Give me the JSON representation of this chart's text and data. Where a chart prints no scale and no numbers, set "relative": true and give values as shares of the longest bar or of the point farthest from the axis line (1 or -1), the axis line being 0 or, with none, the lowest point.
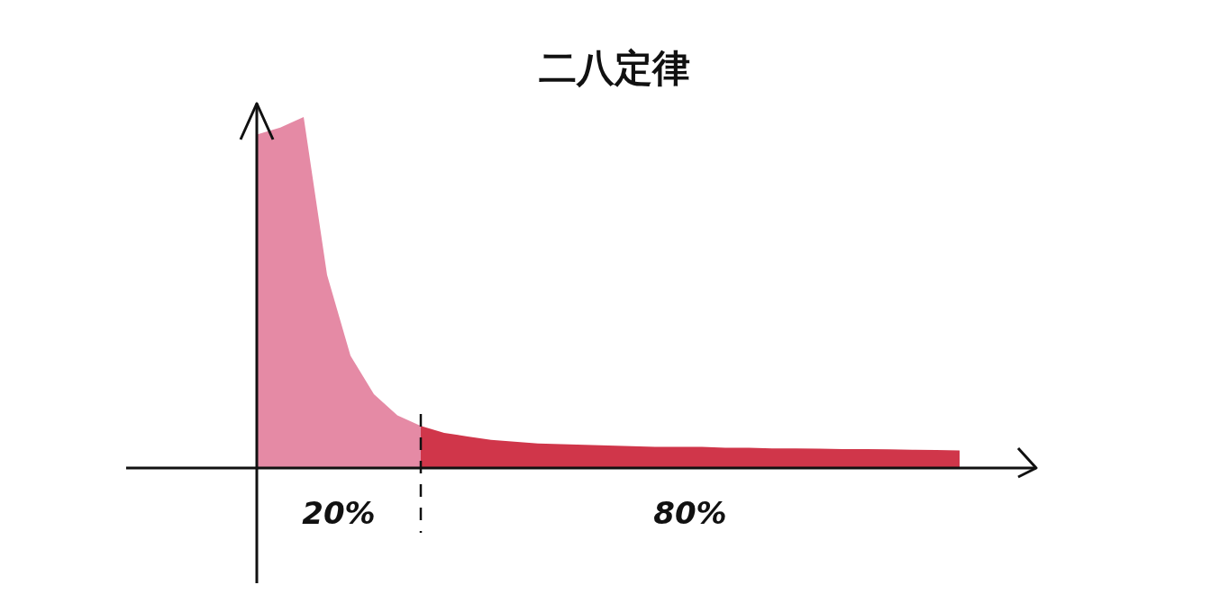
{
  "chart_data": {
    "type": "area",
    "title": "二八定律",
    "relative": true,
    "categories": [
      null,
      null,
      null,
      null,
      null,
      null,
      null,
      null,
      null,
      null,
      null,
      null,
      null,
      null,
      null,
      null,
      null,
      null,
      null,
      null,
      null,
      null,
      null,
      null,
      null,
      null,
      null,
      null,
      null,
      null,
      null
    ],
    "series": [
      {
        "color": "#e58aa5",
        "values": [
          0.95,
          0.97,
          1,
          0.55,
          0.32,
          0.21,
          0.15,
          0.12,
          null,
          null,
          null,
          null,
          null,
          null,
          null,
          null,
          null,
          null,
          null,
          null,
          null,
          null,
          null,
          null,
          null,
          null,
          null,
          null,
          null,
          null,
          null
        ]
      },
      {
        "color": "#d0364a",
        "values": [
          null,
          null,
          null,
          null,
          null,
          null,
          null,
          0.12,
          0.1,
          0.09,
          0.08,
          0.075,
          0.07,
          0.068,
          0.066,
          0.064,
          0.062,
          0.06,
          0.06,
          0.06,
          0.058,
          0.058,
          0.056,
          0.056,
          0.055,
          0.054,
          0.054,
          0.053,
          0.052,
          0.051,
          0.05
        ]
      }
    ],
    "annotations": [
      "20%",
      "80%"
    ]
  }
}
